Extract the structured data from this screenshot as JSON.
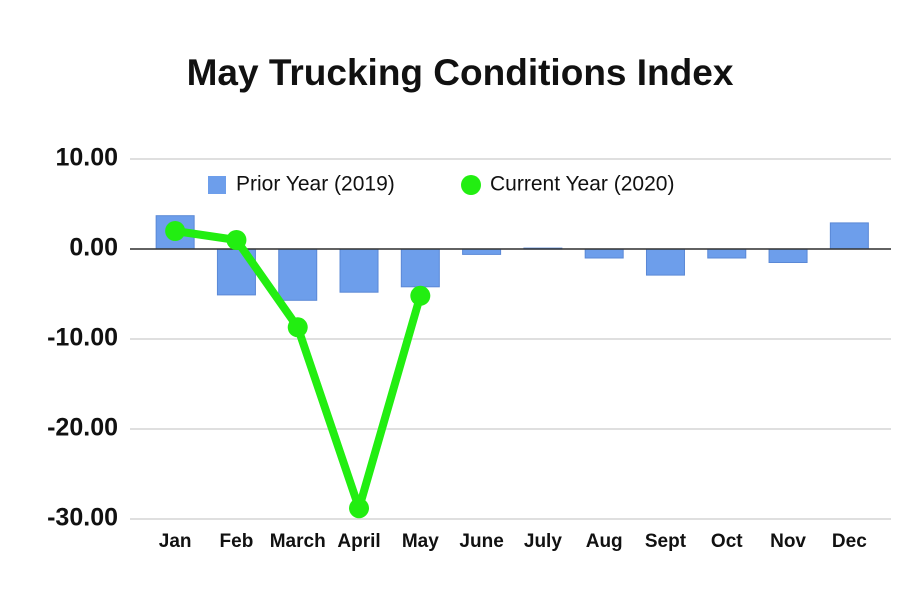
{
  "chart_data": {
    "type": "bar+line",
    "title": "May Trucking Conditions Index",
    "categories": [
      "Jan",
      "Feb",
      "March",
      "April",
      "May",
      "June",
      "July",
      "Aug",
      "Sept",
      "Oct",
      "Nov",
      "Dec"
    ],
    "series": [
      {
        "name": "Prior Year (2019)",
        "type": "bar",
        "color": "#6d9eeb",
        "values": [
          3.7,
          -5.1,
          -5.7,
          -4.8,
          -4.2,
          -0.6,
          0.1,
          -1.0,
          -2.9,
          -1.0,
          -1.5,
          2.9
        ]
      },
      {
        "name": "Current Year (2020)",
        "type": "line",
        "color": "#22ee11",
        "values": [
          2.0,
          1.0,
          -8.7,
          -28.8,
          -5.2,
          null,
          null,
          null,
          null,
          null,
          null,
          null
        ]
      }
    ],
    "ylim": [
      -30,
      10
    ],
    "yticks": [
      {
        "value": -30,
        "label": "-30.00"
      },
      {
        "value": -20,
        "label": "-20.00"
      },
      {
        "value": -10,
        "label": "-10.00"
      },
      {
        "value": 0,
        "label": "0.00"
      },
      {
        "value": 10,
        "label": "10.00"
      }
    ],
    "grid": true
  }
}
